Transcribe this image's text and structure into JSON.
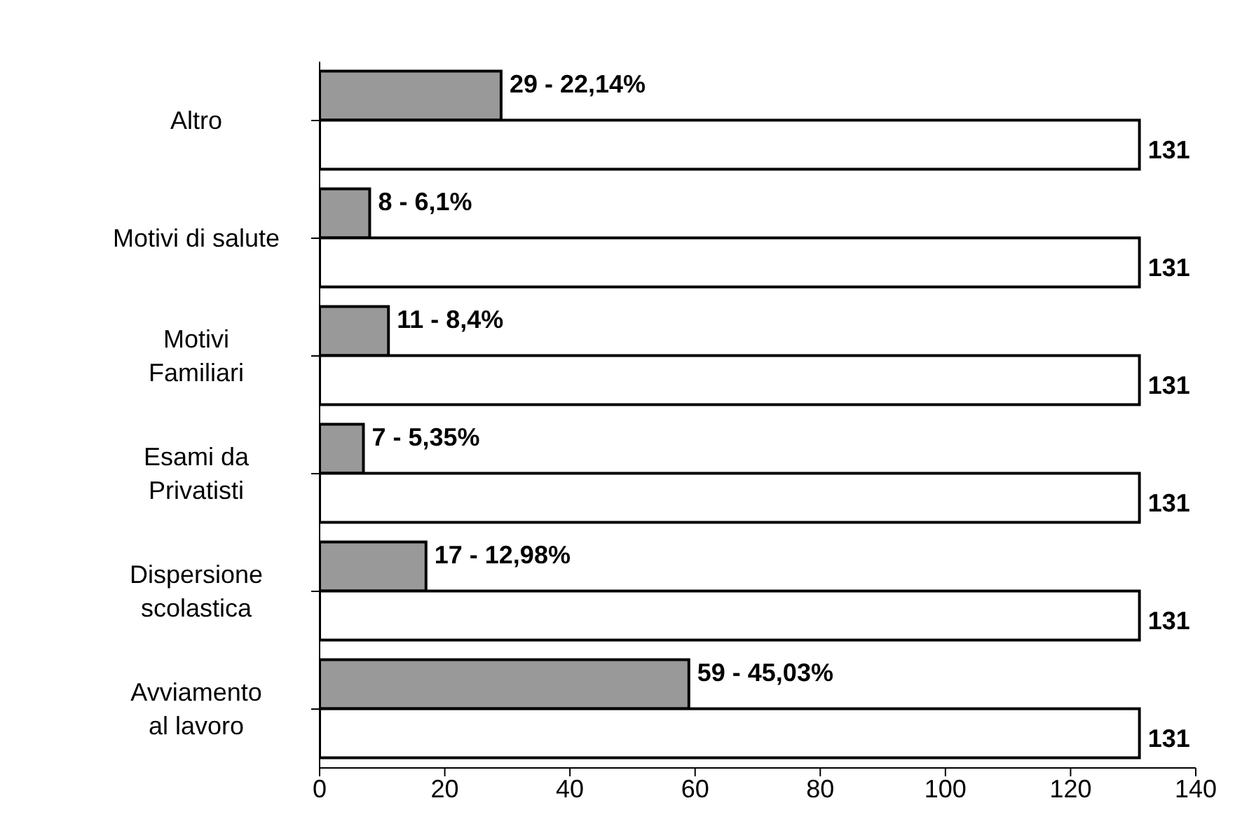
{
  "chart_data": {
    "type": "bar",
    "orientation": "horizontal",
    "categories": [
      "Altro",
      "Motivi di salute",
      "Motivi\nFamiliari",
      "Esami da\nPrivatisti",
      "Dispersione\nscolastica",
      "Avviamento\nal lavoro"
    ],
    "series": [
      {
        "color": "#999999",
        "values": [
          29,
          8,
          11,
          7,
          17,
          59
        ],
        "value_labels": [
          "29 - 22,14%",
          "8 - 6,1%",
          "11 - 8,4%",
          "7 - 5,35%",
          "17 - 12,98%",
          "59 - 45,03%"
        ]
      },
      {
        "color": "#ffffff",
        "values": [
          131,
          131,
          131,
          131,
          131,
          131
        ],
        "value_labels": [
          "131",
          "131",
          "131",
          "131",
          "131",
          "131"
        ]
      }
    ],
    "xlim": [
      0,
      140
    ],
    "xticks": [
      0,
      20,
      40,
      60,
      80,
      100,
      120,
      140
    ],
    "grid": false,
    "legend": false
  }
}
